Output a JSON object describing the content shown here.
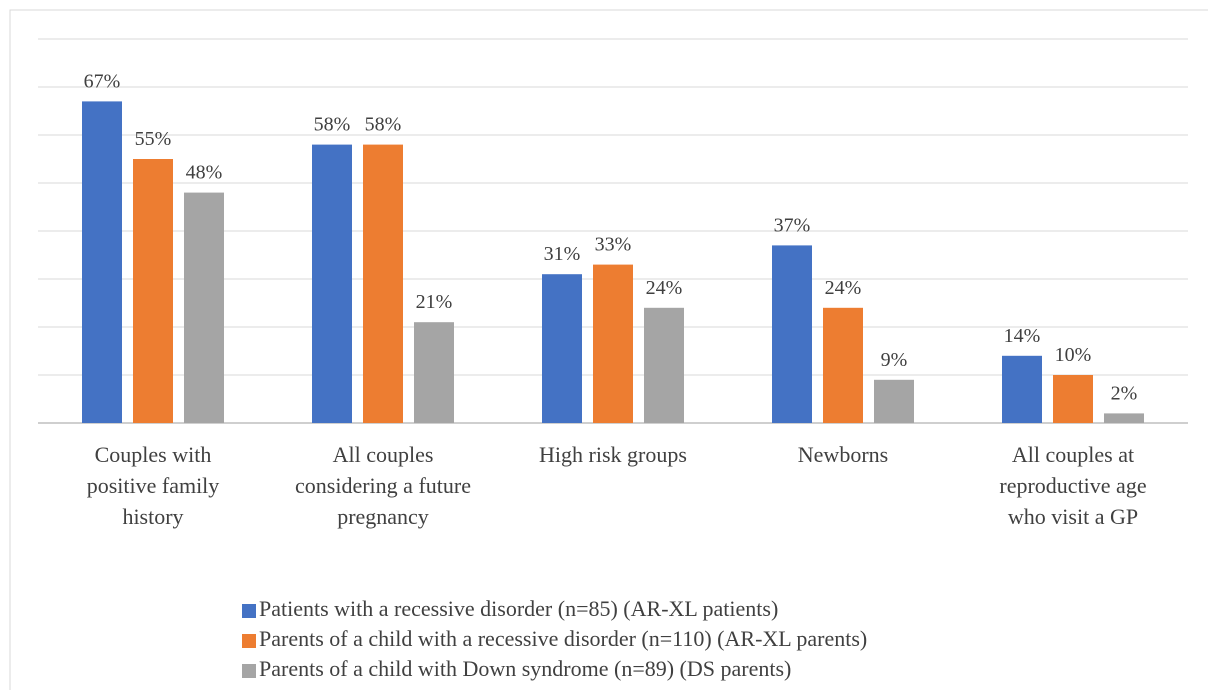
{
  "chart_data": {
    "type": "bar",
    "categories": [
      "Couples with positive family history",
      "All couples considering a future pregnancy",
      "High risk groups",
      "Newborns",
      "All couples at reproductive age who visit a GP"
    ],
    "series": [
      {
        "name": "Patients with a recessive disorder (n=85) (AR-XL patients)",
        "color": "#4472c4",
        "values": [
          67,
          58,
          31,
          37,
          14
        ],
        "value_labels": [
          "67%",
          "58%",
          "31%",
          "37%",
          "14%"
        ]
      },
      {
        "name": "Parents of a child with a recessive disorder (n=110) (AR-XL parents)",
        "color": "#ed7d31",
        "values": [
          55,
          58,
          33,
          24,
          10
        ],
        "value_labels": [
          "55%",
          "58%",
          "33%",
          "24%",
          "10%"
        ]
      },
      {
        "name": "Parents of a child with Down syndrome (n=89) (DS parents)",
        "color": "#a5a5a5",
        "values": [
          48,
          21,
          24,
          9,
          2
        ],
        "value_labels": [
          "48%",
          "21%",
          "24%",
          "9%",
          "2%"
        ]
      }
    ],
    "ylim": [
      0,
      80
    ],
    "yticks": [
      0,
      10,
      20,
      30,
      40,
      50,
      60,
      70,
      80
    ],
    "grid": true,
    "legend": "bottom"
  }
}
